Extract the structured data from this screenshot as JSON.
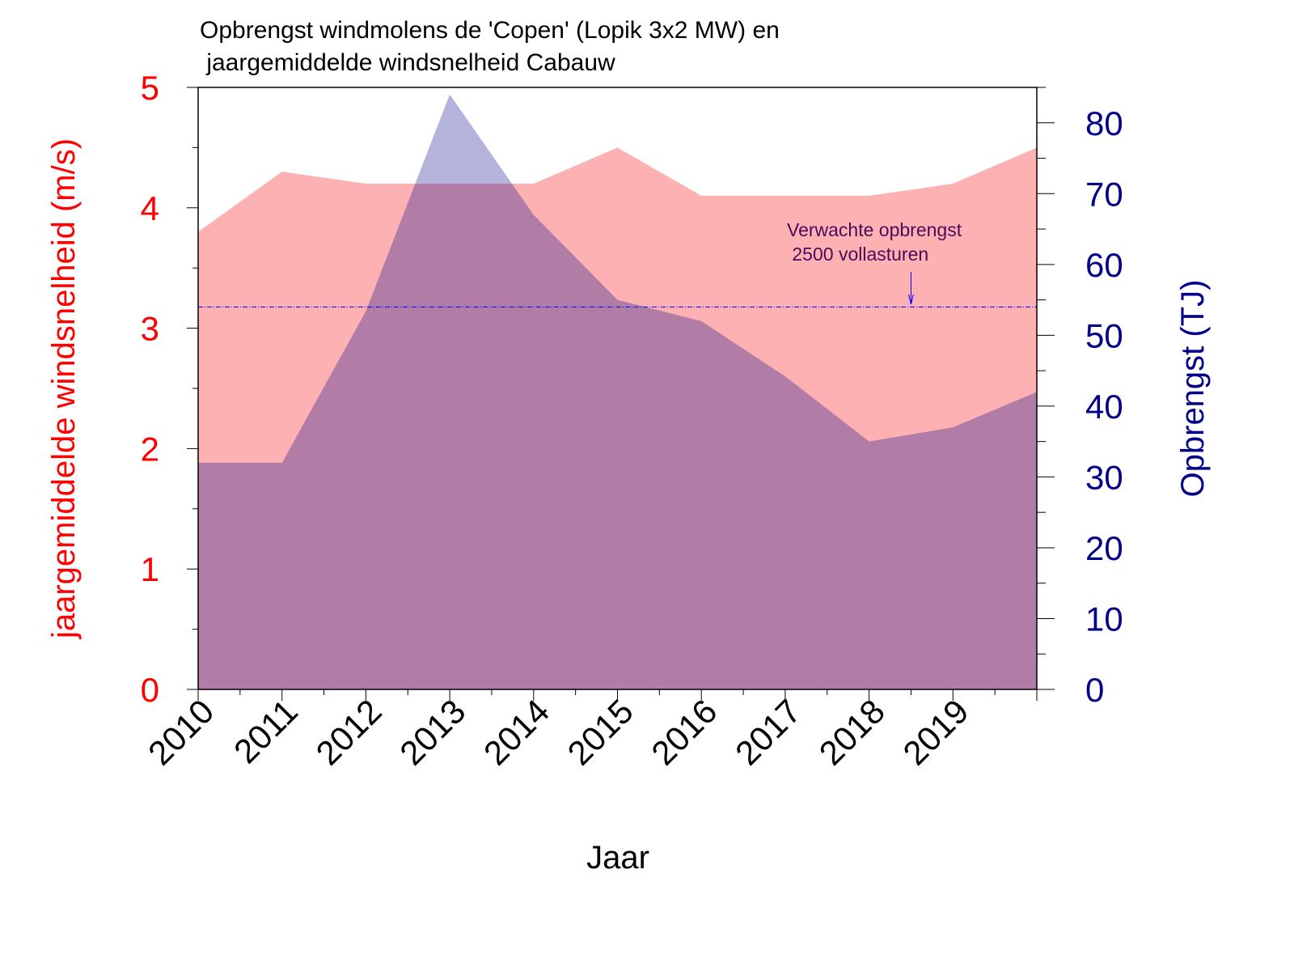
{
  "chart_data": {
    "type": "area",
    "title_line1": "Opbrengst windmolens de 'Copen' (Lopik 3x2 MW) en",
    "title_line2": " jaargemiddelde windsnelheid Cabauw",
    "xlabel": "Jaar",
    "ylabel_left": "jaargemiddelde windsnelheid (m/s)",
    "ylabel_right": "Opbrengst (TJ)",
    "x": [
      2010,
      2011,
      2012,
      2013,
      2014,
      2015,
      2016,
      2017,
      2018,
      2019,
      2020
    ],
    "x_tick_labels": [
      "2010",
      "2011",
      "2012",
      "2013",
      "2014",
      "2015",
      "2016",
      "2017",
      "2018",
      "2019"
    ],
    "xlim": [
      2010,
      2020
    ],
    "ylim_left": [
      0,
      5
    ],
    "ylim_right": [
      0,
      85
    ],
    "left_ticks": [
      "0",
      "1",
      "2",
      "3",
      "4",
      "5"
    ],
    "right_ticks": [
      "0",
      "10",
      "20",
      "30",
      "40",
      "50",
      "60",
      "70",
      "80"
    ],
    "series": [
      {
        "axis": "left",
        "values": [
          3.8,
          4.3,
          4.2,
          4.2,
          4.2,
          4.5,
          4.1,
          4.1,
          4.1,
          4.2,
          4.5
        ],
        "color": "#fdb1b3"
      },
      {
        "axis": "right",
        "values": [
          32,
          32,
          53.4,
          84,
          67,
          55,
          52,
          44.2,
          35,
          37,
          42
        ],
        "color": "#0a0a8b",
        "opacity": 0.31
      }
    ],
    "reference_line": {
      "axis": "right",
      "value": 54,
      "color": "#0000ff",
      "style": "dash-dot"
    },
    "annotation": {
      "line1": "Verwachte opbrengst",
      "line2": " 2500 vollasturen",
      "x": 2018.5,
      "color": "#4b0a5a"
    },
    "colors": {
      "left_axis": "#ff0000",
      "right_axis": "#00008b"
    },
    "grid": false
  }
}
